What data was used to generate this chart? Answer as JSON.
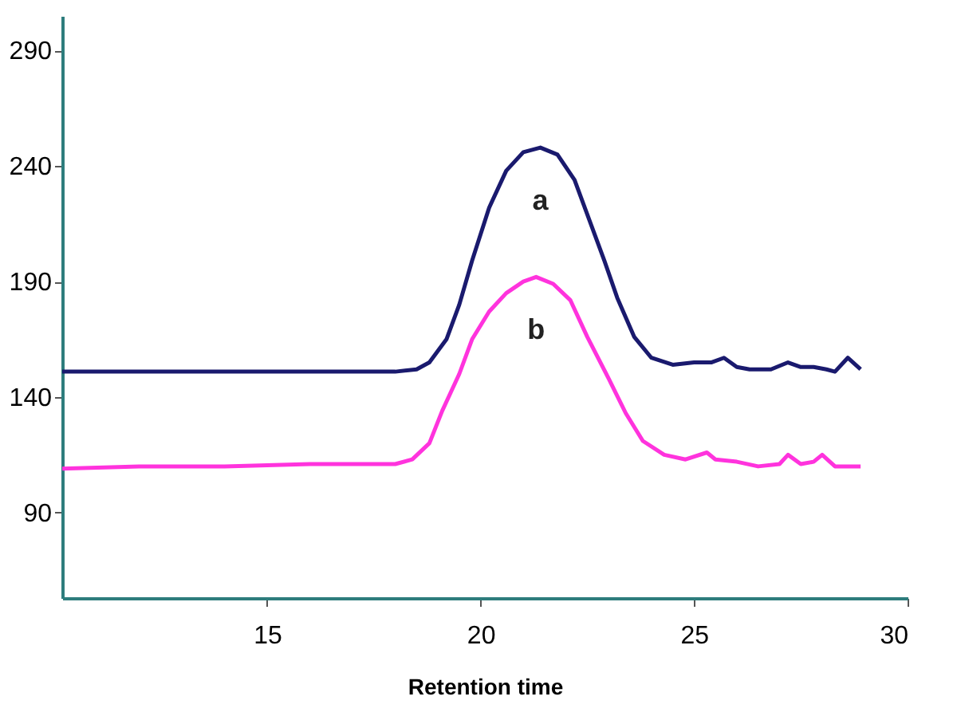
{
  "chart_data": {
    "type": "line",
    "xlabel": "Retention time",
    "xlim": [
      10.2,
      30
    ],
    "xticks": [
      15,
      20,
      25,
      30
    ],
    "ylim": [
      53,
      305
    ],
    "yticks": [
      90,
      140,
      190,
      240,
      290
    ],
    "grid": false,
    "marker": "none",
    "line_style": "solid",
    "series": [
      {
        "name": "a",
        "color": "#1a1a6e",
        "x": [
          10.2,
          12,
          14,
          16,
          18,
          18.5,
          18.8,
          19.2,
          19.5,
          19.8,
          20.2,
          20.6,
          21,
          21.4,
          21.8,
          22.2,
          22.6,
          22.9,
          23.2,
          23.6,
          24,
          24.5,
          25,
          25.4,
          25.7,
          26,
          26.3,
          26.8,
          27.2,
          27.5,
          27.8,
          28.1,
          28.3,
          28.6,
          28.9
        ],
        "values": [
          151,
          151,
          151,
          151,
          151,
          152,
          155,
          165,
          180,
          199,
          222,
          238,
          246,
          248,
          245,
          234,
          214,
          199,
          183,
          166,
          157,
          154,
          155,
          155,
          157,
          153,
          152,
          152,
          155,
          153,
          153,
          152,
          151,
          157,
          152
        ]
      },
      {
        "name": "b",
        "color": "#ff33dd",
        "x": [
          10.2,
          12,
          14,
          16,
          18,
          18.4,
          18.8,
          19.1,
          19.5,
          19.8,
          20.2,
          20.6,
          21,
          21.3,
          21.7,
          22.1,
          22.5,
          23,
          23.4,
          23.8,
          24.3,
          24.8,
          25.3,
          25.5,
          26,
          26.5,
          27,
          27.2,
          27.5,
          27.8,
          28,
          28.3,
          28.6,
          28.9
        ],
        "values": [
          109,
          110,
          110,
          111,
          111,
          113,
          120,
          134,
          150,
          165,
          177,
          185,
          190,
          192,
          189,
          182,
          166,
          148,
          133,
          121,
          115,
          113,
          116,
          113,
          112,
          110,
          111,
          115,
          111,
          112,
          115,
          110,
          110,
          110
        ]
      }
    ]
  }
}
